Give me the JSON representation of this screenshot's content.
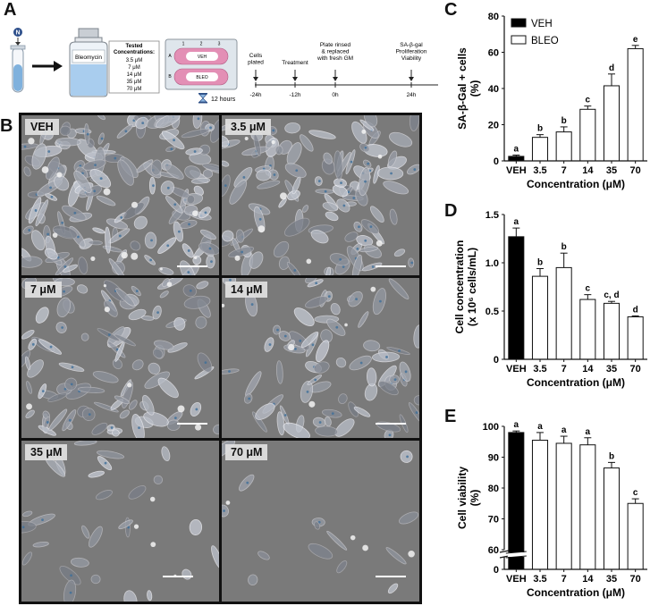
{
  "panel_labels": {
    "a": "A",
    "b": "B",
    "c": "C",
    "d": "D",
    "e": "E"
  },
  "panel_a": {
    "tube_cap_label": "N",
    "bottle_label": "Bleomycin",
    "tested_title": "Tested",
    "tested_title2": "Concentrations:",
    "concentrations": [
      "3.5 μM",
      "7 μM",
      "14 μM",
      "35 μM",
      "70 μM"
    ],
    "plate_columns": [
      "1",
      "2",
      "3"
    ],
    "plate_rows": [
      "A",
      "B"
    ],
    "plate_row_labels": [
      "VEH",
      "BLEO"
    ],
    "incubation": "12 hours",
    "timeline_events": [
      {
        "label": "Cells\nplated",
        "time": "-24h"
      },
      {
        "label": "Treatment",
        "time": "-12h"
      },
      {
        "label": "Plate rinsed\n& replaced\nwith fresh GM",
        "time": "0h"
      },
      {
        "label": "SA-β-gal\nProliferation\nViability",
        "time": "24h"
      }
    ]
  },
  "panel_b": {
    "tiles": [
      "VEH",
      "3.5 μM",
      "7 μM",
      "14 μM",
      "35 μM",
      "70 μM"
    ]
  },
  "colors": {
    "veh": "#000000",
    "bleo": "#ffffff",
    "axis": "#111111"
  },
  "chart_data": [
    {
      "panel": "C",
      "type": "bar",
      "categories": [
        "VEH",
        "3.5",
        "7",
        "14",
        "35",
        "70"
      ],
      "series": [
        {
          "name": "VEH",
          "values": [
            2.5,
            null,
            null,
            null,
            null,
            null
          ]
        },
        {
          "name": "BLEO",
          "values": [
            null,
            13,
            16,
            28.5,
            41.5,
            62
          ]
        }
      ],
      "errors": [
        0.7,
        1.5,
        2.8,
        1.8,
        6.5,
        1.8
      ],
      "letters": [
        "a",
        "b",
        "b",
        "c",
        "d",
        "e"
      ],
      "xlabel": "Concentration (μM)",
      "ylabel_lines": [
        "SA-β-Gal + cells",
        "(%)"
      ],
      "ylim": [
        0,
        80
      ],
      "yticks": [
        0,
        20,
        40,
        60,
        80
      ],
      "legend": [
        "VEH",
        "BLEO"
      ],
      "legend_position": "top-left"
    },
    {
      "panel": "D",
      "type": "bar",
      "categories": [
        "VEH",
        "3.5",
        "7",
        "14",
        "35",
        "70"
      ],
      "values": [
        1.27,
        0.86,
        0.95,
        0.62,
        0.58,
        0.44
      ],
      "errors": [
        0.09,
        0.08,
        0.15,
        0.05,
        0.02,
        0.01
      ],
      "letters": [
        "a",
        "b",
        "b",
        "c",
        "c, d",
        "d"
      ],
      "xlabel": "Concentration (μM)",
      "ylabel_lines": [
        "Cell concentration",
        "(x 10⁶ cells/mL)"
      ],
      "ylim": [
        0,
        1.5
      ],
      "yticks": [
        0.0,
        0.5,
        1.0,
        1.5
      ],
      "ytick_labels": [
        "0",
        "0.5",
        "1.0",
        "1.5"
      ]
    },
    {
      "panel": "E",
      "type": "bar",
      "categories": [
        "VEH",
        "3.5",
        "7",
        "14",
        "35",
        "70"
      ],
      "values": [
        98,
        95.5,
        94.5,
        94,
        86.5,
        75
      ],
      "errors": [
        0.5,
        2.5,
        2.3,
        2.3,
        1.8,
        1.5
      ],
      "letters": [
        "a",
        "a",
        "a",
        "a",
        "b",
        "c"
      ],
      "xlabel": "Concentration (μM)",
      "ylabel_lines": [
        "Cell  viability",
        "(%)"
      ],
      "ylim": [
        60,
        100
      ],
      "yticks": [
        60,
        70,
        80,
        90,
        100
      ],
      "axis_break": true,
      "below_break_tick": "0"
    }
  ]
}
